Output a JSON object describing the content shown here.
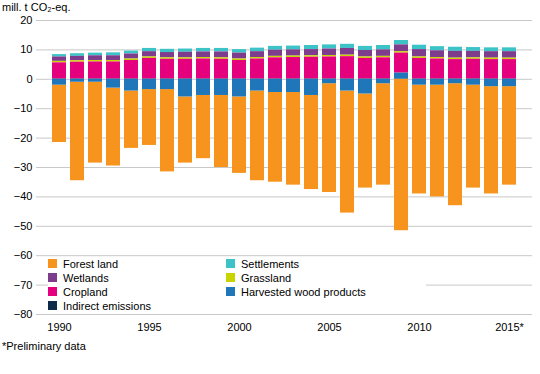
{
  "chart_data": {
    "type": "bar",
    "stacked": true,
    "ylabel": "mill. t CO₂-eq.",
    "caption": "*Preliminary data",
    "categories": [
      "1990",
      null,
      null,
      null,
      null,
      "1995",
      null,
      null,
      null,
      null,
      "2000",
      null,
      null,
      null,
      null,
      "2005",
      null,
      null,
      null,
      null,
      "2010",
      null,
      null,
      null,
      null,
      "2015*"
    ],
    "series": [
      {
        "name": "Forest land",
        "color": "#f7941d",
        "values": [
          -19.5,
          -33.5,
          -27.5,
          -26.5,
          -19.5,
          -19,
          -28,
          -22.5,
          -21.5,
          -24.5,
          -26,
          -30.5,
          -30.5,
          -31.5,
          -32,
          -37,
          -41.5,
          -32,
          -34.5,
          -51.5,
          -37,
          -38,
          -41.5,
          -35,
          -36.5,
          -33.5
        ]
      },
      {
        "name": "Settlements",
        "color": "#3cc3c8",
        "values": [
          0.8,
          0.9,
          0.9,
          1.0,
          1.0,
          1.1,
          1.1,
          1.1,
          1.2,
          1.2,
          1.2,
          1.2,
          1.3,
          1.3,
          1.4,
          1.4,
          1.4,
          1.4,
          1.5,
          1.5,
          1.5,
          1.4,
          1.4,
          1.3,
          1.3,
          1.3
        ]
      },
      {
        "name": "Wetlands",
        "color": "#7d3c8c",
        "values": [
          1.5,
          1.5,
          1.6,
          1.6,
          1.7,
          1.8,
          1.8,
          1.9,
          1.9,
          2.0,
          2.0,
          2.0,
          2.1,
          2.1,
          2.1,
          2.2,
          2.3,
          2.2,
          2.2,
          2.3,
          2.5,
          2.3,
          2.3,
          2.2,
          2.2,
          2.2
        ]
      },
      {
        "name": "Grassland",
        "color": "#c8d400",
        "values": [
          0.5,
          0.5,
          0.5,
          0.5,
          0.5,
          0.5,
          0.5,
          0.5,
          0.5,
          0.5,
          0.5,
          0.5,
          0.5,
          0.5,
          0.5,
          0.5,
          0.5,
          0.5,
          0.5,
          0.5,
          0.5,
          0.5,
          0.5,
          0.5,
          0.5,
          0.5
        ]
      },
      {
        "name": "Cropland",
        "color": "#e5007d",
        "values": [
          5.5,
          5.7,
          5.8,
          5.8,
          6.3,
          7.0,
          6.7,
          6.7,
          6.8,
          6.7,
          6.3,
          6.8,
          7.2,
          7.3,
          7.4,
          7.5,
          7.6,
          7.0,
          7.2,
          6.8,
          7.0,
          6.8,
          6.6,
          6.7,
          6.6,
          6.6
        ]
      },
      {
        "name": "Harvested wood products",
        "color": "#1f77b9",
        "values": [
          -2,
          -1,
          -1,
          -3,
          -4,
          -3.5,
          -3.5,
          -6,
          -5.5,
          -5.5,
          -6,
          -4,
          -4.5,
          -4.5,
          -5.5,
          -1.5,
          -4,
          -5,
          -1.5,
          2,
          -2,
          -2,
          -1.5,
          -2,
          -2.5,
          -2.5
        ]
      },
      {
        "name": "Indirect emissions",
        "color": "#0d2a4b",
        "values": [
          0.1,
          0.1,
          0.1,
          0.1,
          0.1,
          0.1,
          0.1,
          0.1,
          0.1,
          0.1,
          0.1,
          0.1,
          0.1,
          0.1,
          0.1,
          0.1,
          0.1,
          0.1,
          0.1,
          0.1,
          0.1,
          0.1,
          0.1,
          0.1,
          0.1,
          0.1
        ]
      }
    ],
    "ylim": [
      -80,
      20
    ],
    "yticks": [
      -80,
      -70,
      -60,
      -50,
      -40,
      -30,
      -20,
      -10,
      0,
      10,
      20
    ],
    "grid": true,
    "legend": "bottom-left"
  }
}
